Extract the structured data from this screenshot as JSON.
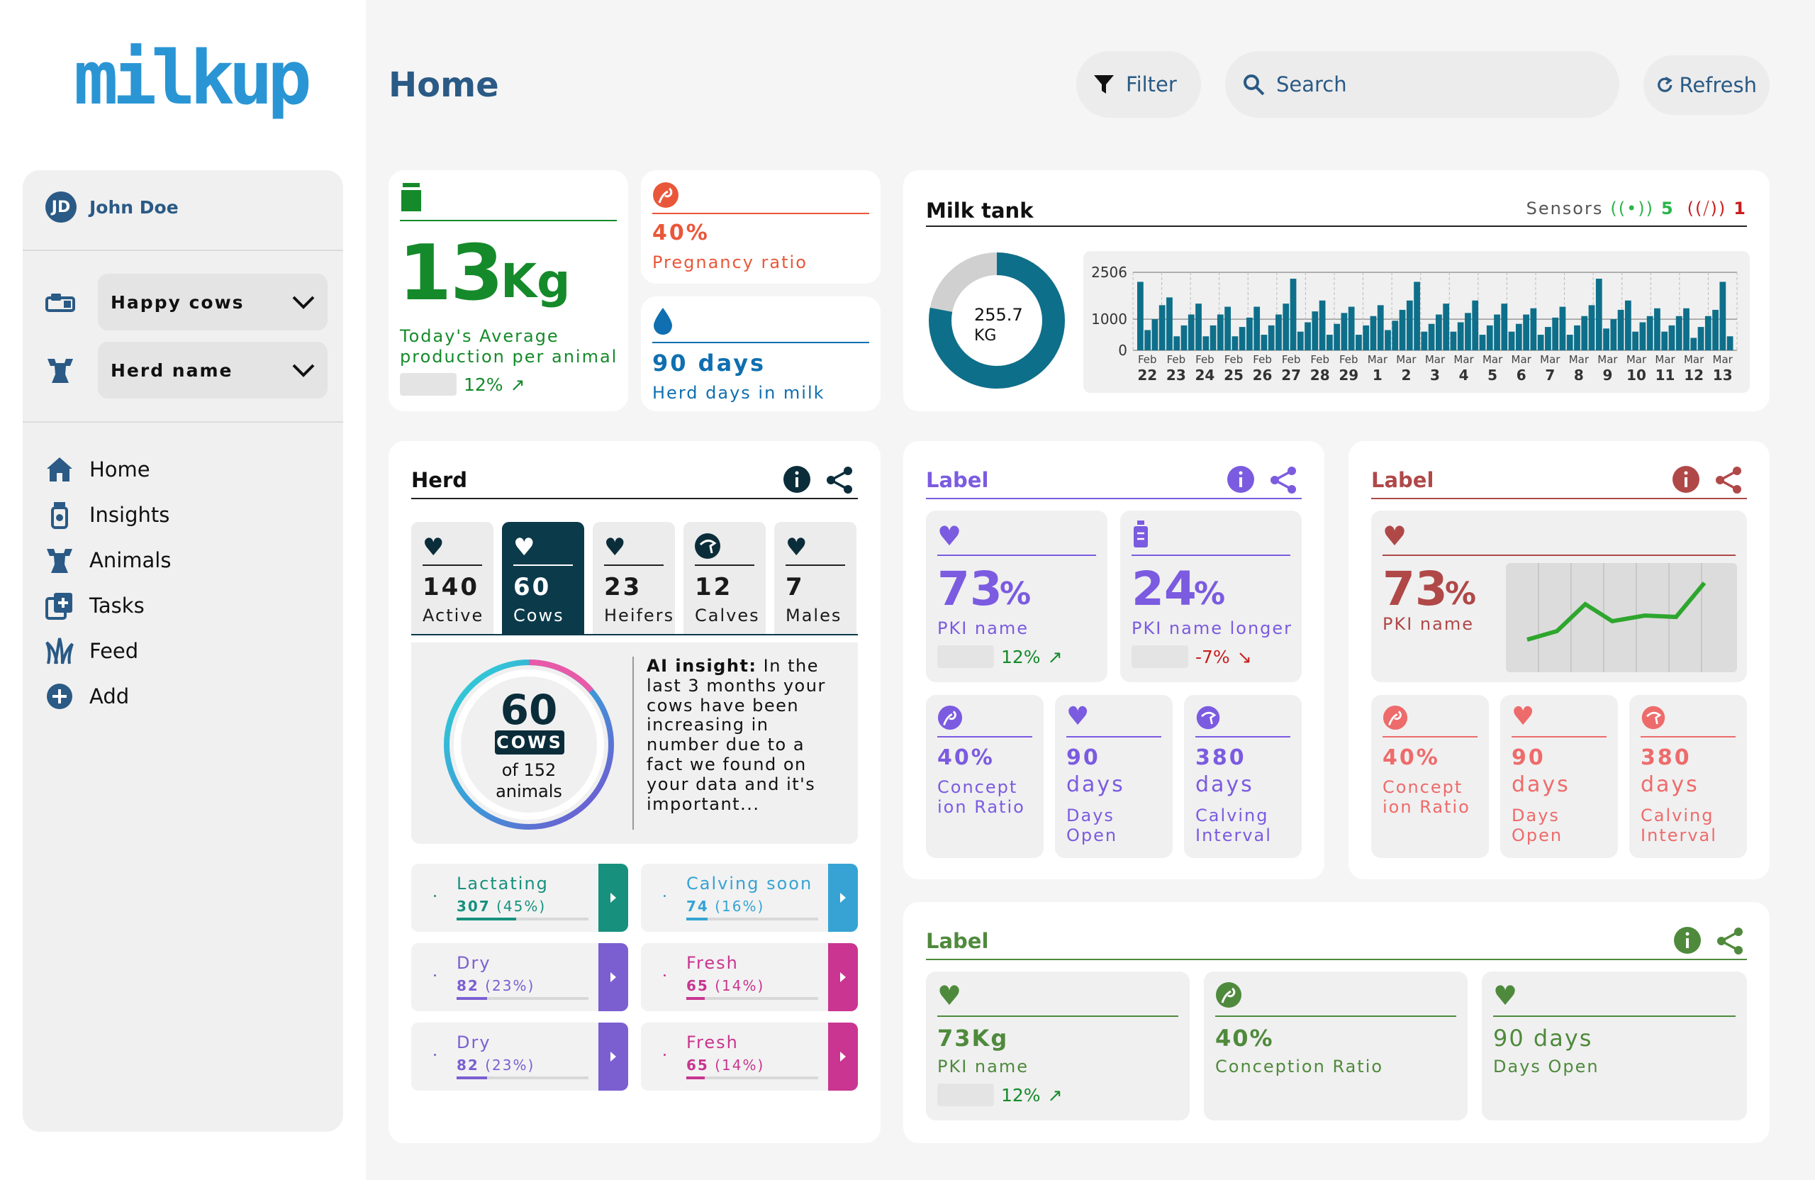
{
  "app": {
    "logo": "milkup",
    "page_title": "Home"
  },
  "header": {
    "filter_label": "Filter",
    "search_placeholder": "Search",
    "refresh_label": "Refresh"
  },
  "user": {
    "initials": "JD",
    "name": "John Doe"
  },
  "selectors": [
    {
      "value": "Happy cows"
    },
    {
      "value": "Herd name"
    }
  ],
  "nav": [
    {
      "label": "Home",
      "icon": "home-icon"
    },
    {
      "label": "Insights",
      "icon": "insights-icon"
    },
    {
      "label": "Animals",
      "icon": "animals-icon"
    },
    {
      "label": "Tasks",
      "icon": "tasks-icon"
    },
    {
      "label": "Feed",
      "icon": "feed-icon"
    },
    {
      "label": "Add",
      "icon": "add-icon"
    }
  ],
  "production": {
    "value": "13",
    "unit": "Kg",
    "label": "Today's Average production per animal",
    "trend": "12%"
  },
  "pregnancy": {
    "value": "40%",
    "label": "Pregnancy ratio"
  },
  "milkdays": {
    "value": "90 days",
    "label": "Herd days in milk"
  },
  "tank": {
    "title": "Milk tank",
    "sensors_label": "Sensors",
    "sensors_ok": "5",
    "sensors_bad": "1",
    "gauge_value": "255.7",
    "gauge_unit": "KG",
    "gauge_fraction": 0.78
  },
  "chart_data": {
    "type": "bar",
    "ylim": [
      0,
      2506
    ],
    "yticks": [
      "2506",
      "1000",
      "0"
    ],
    "months": [
      "Feb",
      "Feb",
      "Feb",
      "Feb",
      "Feb",
      "Feb",
      "Feb",
      "Feb",
      "Mar",
      "Mar",
      "Mar",
      "Mar",
      "Mar",
      "Mar",
      "Mar",
      "Mar",
      "Mar",
      "Mar",
      "Mar",
      "Mar",
      "Mar"
    ],
    "days": [
      "22",
      "23",
      "24",
      "25",
      "26",
      "27",
      "28",
      "29",
      "1",
      "2",
      "3",
      "4",
      "5",
      "6",
      "7",
      "8",
      "9",
      "10",
      "11",
      "12",
      "13"
    ],
    "series": [
      {
        "values": [
          2200,
          650,
          1000,
          1450,
          1700,
          450,
          800,
          1150,
          1500,
          450,
          800,
          1150,
          1400,
          450,
          750,
          1050,
          1400,
          500,
          800,
          1150,
          1500,
          2300,
          600,
          900,
          1250,
          1600,
          500,
          850,
          1200,
          1400,
          500,
          800,
          1100,
          1450,
          650,
          950,
          1300,
          1600,
          2200,
          600,
          850,
          1150,
          1500,
          600,
          900,
          1200,
          1600,
          500,
          800,
          1150,
          1500,
          600,
          850,
          1150,
          1350,
          500,
          750,
          1050,
          1400,
          500,
          800,
          1100,
          1450,
          2300,
          700,
          1000,
          1300,
          1600,
          600,
          900,
          1100,
          1350,
          600,
          800,
          1100,
          1350,
          400,
          750,
          1100,
          1300,
          2200,
          450
        ]
      }
    ]
  },
  "herd": {
    "title": "Herd",
    "tabs": [
      {
        "value": "140",
        "label": "Active"
      },
      {
        "value": "60",
        "label": "Cows"
      },
      {
        "value": "23",
        "label": "Heifers"
      },
      {
        "value": "12",
        "label": "Calves"
      },
      {
        "value": "7",
        "label": "Males"
      }
    ],
    "ring_value": "60",
    "ring_badge": "COWS",
    "ring_sub1": "of 152",
    "ring_sub2": "animals",
    "insight_title": "AI insight:",
    "insight_text": "In the last 3 months your cows have been increasing in number due to a fact we found on your data and it's important...",
    "stats": [
      {
        "name": "Lactating",
        "value": "307",
        "pct": "(45%)",
        "frac": 0.45,
        "color": "#17917e"
      },
      {
        "name": "Calving soon",
        "value": "74",
        "pct": "(16%)",
        "frac": 0.16,
        "color": "#36a3d4"
      },
      {
        "name": "Dry",
        "value": "82",
        "pct": "(23%)",
        "frac": 0.23,
        "color": "#7b5fd1"
      },
      {
        "name": "Fresh",
        "value": "65",
        "pct": "(14%)",
        "frac": 0.14,
        "color": "#c93590"
      },
      {
        "name": "Dry",
        "value": "82",
        "pct": "(23%)",
        "frac": 0.23,
        "color": "#7b5fd1"
      },
      {
        "name": "Fresh",
        "value": "65",
        "pct": "(14%)",
        "frac": 0.14,
        "color": "#c93590"
      }
    ]
  },
  "purple": {
    "title": "Label",
    "kpi1": {
      "value": "73",
      "unit": "%",
      "label": "PKI name",
      "trend": "12%"
    },
    "kpi2": {
      "value": "24",
      "unit": "%",
      "label": "PKI name longer",
      "trend": "-7%"
    },
    "small": [
      {
        "value": "40%",
        "label1": "Concept",
        "label2": "ion Ratio"
      },
      {
        "value": "90",
        "value2": "days",
        "label1": "Days",
        "label2": "Open"
      },
      {
        "value": "380",
        "value2": "days",
        "label1": "Calving",
        "label2": "Interval"
      }
    ]
  },
  "red": {
    "title": "Label",
    "kpi1": {
      "value": "73",
      "unit": "%",
      "label": "PKI name"
    },
    "small": [
      {
        "value": "40%",
        "label1": "Concept",
        "label2": "ion Ratio"
      },
      {
        "value": "90",
        "value2": "days",
        "label1": "Days",
        "label2": "Open"
      },
      {
        "value": "380",
        "value2": "days",
        "label1": "Calving",
        "label2": "Interval"
      }
    ]
  },
  "green": {
    "title": "Label",
    "items": [
      {
        "value": "73Kg",
        "label": "PKI name",
        "trend": "12%"
      },
      {
        "value": "40%",
        "label": "Conception Ratio"
      },
      {
        "value": "90 days",
        "label": "Days Open"
      }
    ]
  },
  "colors": {
    "navy": "#2a5a85",
    "green": "#158a2a",
    "orange": "#e9573a",
    "blue": "#0f6fb0",
    "purple": "#7b5be0",
    "red": "#b04848",
    "olive": "#4f8a3c",
    "teal": "#0e6f8a"
  }
}
